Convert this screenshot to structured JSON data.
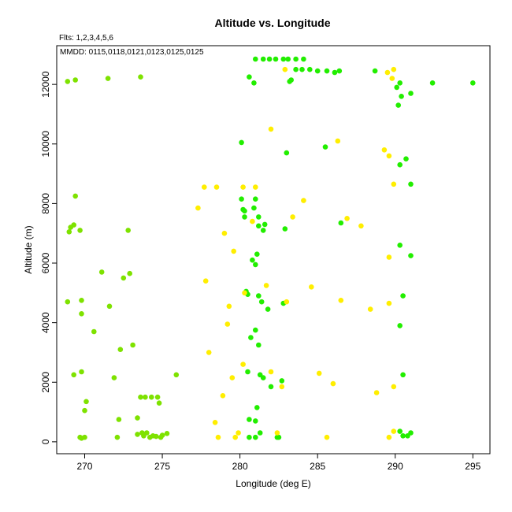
{
  "chart_data": {
    "type": "scatter",
    "title": "Altitude vs. Longitude",
    "subtitle": "Flts: 1,2,3,4,5,6",
    "annotation": "MMDD: 0115,0118,0121,0123,0125,0125",
    "xlabel": "Longitude (deg E)",
    "ylabel": "Altitude (m)",
    "xlim": [
      268.2,
      296.1
    ],
    "ylim": [
      -400,
      13300
    ],
    "xticks": [
      270,
      275,
      280,
      285,
      290,
      295
    ],
    "yticks": [
      0,
      2000,
      4000,
      6000,
      8000,
      10000,
      12000
    ],
    "grid": false,
    "series": [
      {
        "color": "#7ee200",
        "points": [
          [
            268.9,
            12100
          ],
          [
            269.4,
            12150
          ],
          [
            271.5,
            12200
          ],
          [
            273.6,
            12250
          ],
          [
            269.4,
            8250
          ],
          [
            269.1,
            7200
          ],
          [
            269.3,
            7280
          ],
          [
            269.0,
            7050
          ],
          [
            269.7,
            7100
          ],
          [
            272.8,
            7100
          ],
          [
            271.1,
            5700
          ],
          [
            272.5,
            5500
          ],
          [
            272.9,
            5650
          ],
          [
            268.9,
            4700
          ],
          [
            269.8,
            4750
          ],
          [
            271.6,
            4550
          ],
          [
            269.8,
            4300
          ],
          [
            270.6,
            3700
          ],
          [
            272.3,
            3100
          ],
          [
            273.1,
            3250
          ],
          [
            269.8,
            2350
          ],
          [
            269.3,
            2250
          ],
          [
            271.9,
            2150
          ],
          [
            275.9,
            2250
          ],
          [
            273.6,
            1500
          ],
          [
            273.9,
            1500
          ],
          [
            274.3,
            1500
          ],
          [
            274.7,
            1500
          ],
          [
            274.8,
            1300
          ],
          [
            270.1,
            1350
          ],
          [
            270.0,
            1050
          ],
          [
            272.2,
            750
          ],
          [
            273.4,
            800
          ],
          [
            269.7,
            150
          ],
          [
            270.0,
            150
          ],
          [
            269.8,
            120
          ],
          [
            272.1,
            150
          ],
          [
            273.4,
            250
          ],
          [
            273.7,
            300
          ],
          [
            274.0,
            300
          ],
          [
            274.4,
            200
          ],
          [
            273.8,
            200
          ],
          [
            274.6,
            180
          ],
          [
            274.2,
            150
          ],
          [
            274.9,
            150
          ],
          [
            275.0,
            220
          ],
          [
            275.3,
            280
          ]
        ]
      },
      {
        "color": "#22ee00",
        "points": [
          [
            281.0,
            12850
          ],
          [
            281.5,
            12850
          ],
          [
            281.9,
            12850
          ],
          [
            282.3,
            12850
          ],
          [
            282.8,
            12850
          ],
          [
            283.1,
            12850
          ],
          [
            283.6,
            12850
          ],
          [
            284.1,
            12850
          ],
          [
            283.6,
            12500
          ],
          [
            284.0,
            12500
          ],
          [
            284.5,
            12500
          ],
          [
            285.0,
            12450
          ],
          [
            285.6,
            12450
          ],
          [
            286.1,
            12400
          ],
          [
            286.4,
            12450
          ],
          [
            283.3,
            12150
          ],
          [
            283.2,
            12100
          ],
          [
            280.6,
            12250
          ],
          [
            280.9,
            12050
          ],
          [
            288.7,
            12450
          ],
          [
            290.3,
            12050
          ],
          [
            290.1,
            11900
          ],
          [
            290.4,
            11600
          ],
          [
            290.2,
            11300
          ],
          [
            291.0,
            11700
          ],
          [
            292.4,
            12050
          ],
          [
            295.0,
            12050
          ],
          [
            280.1,
            10050
          ],
          [
            283.0,
            9700
          ],
          [
            285.5,
            9900
          ],
          [
            290.3,
            9300
          ],
          [
            290.7,
            9500
          ],
          [
            291.0,
            8650
          ],
          [
            280.1,
            8150
          ],
          [
            280.2,
            7800
          ],
          [
            280.3,
            7750
          ],
          [
            280.3,
            7550
          ],
          [
            280.9,
            7850
          ],
          [
            281.0,
            8150
          ],
          [
            281.2,
            7550
          ],
          [
            281.2,
            7250
          ],
          [
            281.6,
            7300
          ],
          [
            281.5,
            7100
          ],
          [
            282.9,
            7150
          ],
          [
            286.5,
            7350
          ],
          [
            290.3,
            6600
          ],
          [
            291.0,
            6250
          ],
          [
            281.1,
            6300
          ],
          [
            280.8,
            6100
          ],
          [
            281.0,
            5950
          ],
          [
            280.4,
            5050
          ],
          [
            280.5,
            4950
          ],
          [
            281.2,
            4900
          ],
          [
            281.4,
            4700
          ],
          [
            281.8,
            4450
          ],
          [
            282.8,
            4650
          ],
          [
            290.5,
            4900
          ],
          [
            290.3,
            3900
          ],
          [
            281.0,
            3750
          ],
          [
            280.7,
            3500
          ],
          [
            281.2,
            3250
          ],
          [
            280.5,
            2350
          ],
          [
            281.3,
            2250
          ],
          [
            281.5,
            2150
          ],
          [
            282.7,
            2050
          ],
          [
            282.0,
            1850
          ],
          [
            290.5,
            2250
          ],
          [
            281.1,
            1150
          ],
          [
            280.6,
            750
          ],
          [
            281.0,
            700
          ],
          [
            280.6,
            150
          ],
          [
            281.0,
            150
          ],
          [
            281.3,
            300
          ],
          [
            282.4,
            150
          ],
          [
            282.5,
            150
          ],
          [
            290.3,
            350
          ],
          [
            290.5,
            200
          ],
          [
            290.8,
            200
          ],
          [
            291.0,
            300
          ]
        ]
      },
      {
        "color": "#ffee00",
        "points": [
          [
            282.9,
            12500
          ],
          [
            289.5,
            12400
          ],
          [
            289.9,
            12500
          ],
          [
            289.8,
            12200
          ],
          [
            282.0,
            10500
          ],
          [
            286.3,
            10100
          ],
          [
            289.3,
            9800
          ],
          [
            289.6,
            9600
          ],
          [
            277.7,
            8550
          ],
          [
            278.5,
            8550
          ],
          [
            280.2,
            8550
          ],
          [
            281.0,
            8550
          ],
          [
            284.1,
            8100
          ],
          [
            277.3,
            7850
          ],
          [
            283.4,
            7550
          ],
          [
            286.9,
            7500
          ],
          [
            287.8,
            7250
          ],
          [
            280.8,
            7400
          ],
          [
            279.0,
            7000
          ],
          [
            279.6,
            6400
          ],
          [
            289.6,
            6200
          ],
          [
            289.9,
            8650
          ],
          [
            277.8,
            5400
          ],
          [
            281.7,
            5250
          ],
          [
            284.6,
            5200
          ],
          [
            280.3,
            5000
          ],
          [
            283.0,
            4700
          ],
          [
            286.5,
            4750
          ],
          [
            289.6,
            4650
          ],
          [
            279.3,
            4550
          ],
          [
            288.4,
            4450
          ],
          [
            279.2,
            3950
          ],
          [
            278.0,
            3000
          ],
          [
            280.2,
            2600
          ],
          [
            282.0,
            2350
          ],
          [
            285.1,
            2300
          ],
          [
            279.5,
            2150
          ],
          [
            282.7,
            1850
          ],
          [
            286.0,
            1950
          ],
          [
            289.9,
            1850
          ],
          [
            278.9,
            1550
          ],
          [
            288.8,
            1650
          ],
          [
            278.4,
            650
          ],
          [
            279.9,
            300
          ],
          [
            279.7,
            150
          ],
          [
            278.6,
            150
          ],
          [
            282.4,
            300
          ],
          [
            285.6,
            150
          ],
          [
            289.6,
            150
          ],
          [
            289.9,
            350
          ]
        ]
      }
    ]
  }
}
